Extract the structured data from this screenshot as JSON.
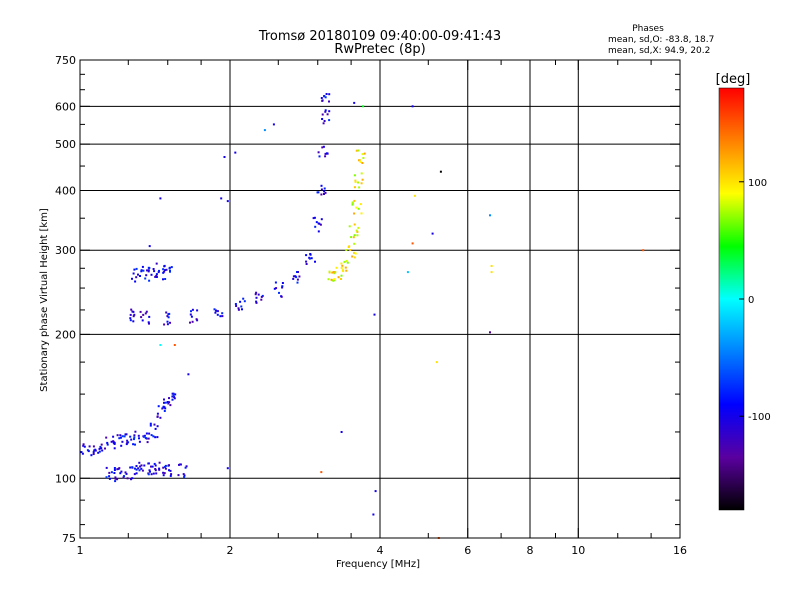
{
  "chart_data": {
    "type": "scatter",
    "title": "Tromsø 20180109 09:40:00-09:41:43",
    "subtitle": "RwPretec (8p)",
    "stats": {
      "heading": "Phases",
      "line1": "mean, sd,O: -83.8, 18.7",
      "line2": "mean, sd,X:  94.9, 20.2"
    },
    "xlabel": "Frequency [MHz]",
    "ylabel": "Stationary phase Virtual Height [km]",
    "x_scale": "log",
    "y_scale": "log",
    "xlim": [
      1,
      16
    ],
    "ylim": [
      75,
      750
    ],
    "x_ticks": [
      1,
      2,
      4,
      6,
      8,
      10,
      16
    ],
    "x_tick_labels": [
      "1",
      "2",
      "4",
      "6",
      "8",
      "10",
      "16"
    ],
    "x_minor_ticks": [
      1.25,
      1.5,
      1.75,
      2.5,
      3,
      3.5,
      5,
      7,
      9,
      12,
      14
    ],
    "y_ticks": [
      75,
      100,
      200,
      300,
      400,
      500,
      600,
      750
    ],
    "y_tick_labels": [
      "75",
      "100",
      "200",
      "300",
      "400",
      "500",
      "600",
      "750"
    ],
    "y_minor_ticks": [
      80,
      90,
      125,
      150,
      175,
      225,
      250,
      275,
      350,
      450,
      550,
      650,
      700
    ],
    "x_grid": [
      2,
      4,
      6,
      8,
      10
    ],
    "y_grid": [
      100,
      200,
      300,
      400,
      500,
      600
    ],
    "colorbar": {
      "unit": "[deg]",
      "min": -180,
      "max": 180,
      "ticks": [
        100,
        0,
        -100
      ],
      "tick_labels": [
        "100",
        "0",
        "-100"
      ],
      "colors": [
        "#000000",
        "#5a00a0",
        "#0000ff",
        "#0080ff",
        "#00ffff",
        "#00ff00",
        "#ffff00",
        "#ff8000",
        "#ff0000"
      ]
    },
    "series": [
      {
        "mode": "O",
        "phase_deg": -100,
        "trace_points": [
          [
            1.0,
            115
          ],
          [
            1.05,
            115
          ],
          [
            1.1,
            116
          ],
          [
            1.15,
            118
          ],
          [
            1.2,
            120
          ],
          [
            1.25,
            122
          ],
          [
            1.3,
            121
          ],
          [
            1.35,
            123
          ],
          [
            1.4,
            126
          ],
          [
            1.45,
            138
          ],
          [
            1.5,
            143
          ],
          [
            1.52,
            148
          ],
          [
            1.15,
            103
          ],
          [
            1.2,
            102
          ],
          [
            1.25,
            103
          ],
          [
            1.3,
            105
          ],
          [
            1.35,
            104
          ],
          [
            1.4,
            104
          ],
          [
            1.45,
            105
          ],
          [
            1.5,
            104
          ],
          [
            1.6,
            104
          ],
          [
            1.3,
            265
          ],
          [
            1.35,
            268
          ],
          [
            1.4,
            272
          ],
          [
            1.45,
            273
          ],
          [
            1.5,
            270
          ],
          [
            1.28,
            220
          ],
          [
            1.35,
            217
          ],
          [
            1.5,
            217
          ],
          [
            1.7,
            219
          ],
          [
            1.9,
            223
          ],
          [
            2.1,
            230
          ],
          [
            2.3,
            238
          ],
          [
            2.5,
            248
          ],
          [
            2.7,
            262
          ],
          [
            2.9,
            290
          ],
          [
            3.0,
            340
          ],
          [
            3.05,
            400
          ],
          [
            3.08,
            480
          ],
          [
            3.1,
            570
          ],
          [
            3.12,
            620
          ]
        ]
      },
      {
        "mode": "X",
        "phase_deg": 95,
        "trace_points": [
          [
            3.2,
            262
          ],
          [
            3.3,
            268
          ],
          [
            3.4,
            280
          ],
          [
            3.5,
            300
          ],
          [
            3.55,
            330
          ],
          [
            3.6,
            370
          ],
          [
            3.62,
            420
          ],
          [
            3.65,
            470
          ]
        ]
      }
    ],
    "outliers": [
      [
        1.45,
        385,
        -100
      ],
      [
        1.38,
        306,
        -100
      ],
      [
        1.65,
        165,
        -100
      ],
      [
        1.45,
        190,
        0
      ],
      [
        1.55,
        190,
        150
      ],
      [
        1.95,
        470,
        -100
      ],
      [
        1.92,
        385,
        -100
      ],
      [
        1.98,
        380,
        -100
      ],
      [
        1.98,
        105,
        -100
      ],
      [
        2.05,
        480,
        -100
      ],
      [
        2.35,
        535,
        -40
      ],
      [
        2.45,
        550,
        -100
      ],
      [
        3.05,
        103,
        150
      ],
      [
        3.35,
        125,
        -100
      ],
      [
        3.55,
        610,
        -100
      ],
      [
        3.88,
        84,
        -100
      ],
      [
        3.92,
        94,
        -100
      ],
      [
        3.9,
        220,
        -100
      ],
      [
        4.65,
        600,
        -100
      ],
      [
        4.7,
        390,
        100
      ],
      [
        4.55,
        270,
        -20
      ],
      [
        4.65,
        310,
        150
      ],
      [
        5.1,
        325,
        -100
      ],
      [
        5.2,
        175,
        100
      ],
      [
        5.25,
        75,
        150
      ],
      [
        5.3,
        438,
        -180
      ],
      [
        6.65,
        355,
        -40
      ],
      [
        6.7,
        278,
        100
      ],
      [
        6.7,
        270,
        100
      ],
      [
        6.65,
        202,
        -140
      ],
      [
        13.5,
        300,
        150
      ],
      [
        3.7,
        600,
        40
      ]
    ]
  }
}
